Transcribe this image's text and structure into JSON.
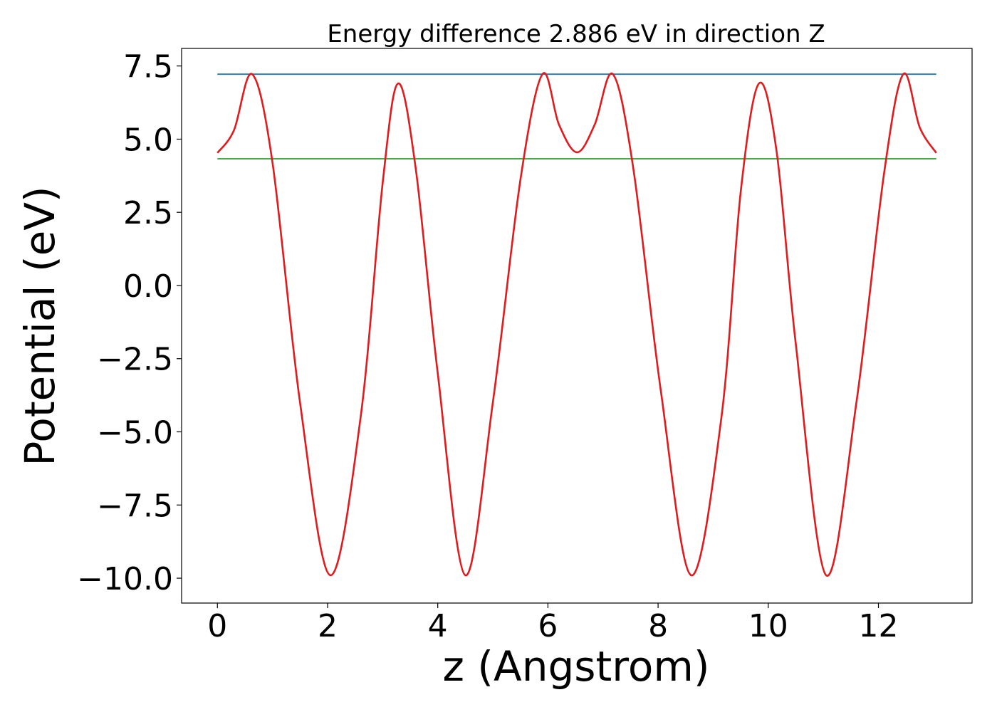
{
  "chart_data": {
    "type": "line",
    "title": "Energy difference 2.886 eV in direction Z",
    "xlabel": "z (Angstrom)",
    "ylabel": "Potential (eV)",
    "xlim": [
      -0.65,
      13.7
    ],
    "ylim": [
      -10.85,
      8.1
    ],
    "xticks": [
      0,
      2,
      4,
      6,
      8,
      10,
      12
    ],
    "xtick_labels": [
      "0",
      "2",
      "4",
      "6",
      "8",
      "10",
      "12"
    ],
    "yticks": [
      7.5,
      5.0,
      2.5,
      0.0,
      -2.5,
      -5.0,
      -7.5,
      -10.0
    ],
    "ytick_labels": [
      "7.5",
      "5.0",
      "2.5",
      "0.0",
      "−2.5",
      "−5.0",
      "−7.5",
      "−10.0"
    ],
    "grid": false,
    "series": [
      {
        "color": "#1f77b4",
        "x": [
          0,
          13.05
        ],
        "y": [
          7.22,
          7.22
        ]
      },
      {
        "color": "#2ca02c",
        "x": [
          0,
          13.05
        ],
        "y": [
          4.33,
          4.33
        ]
      },
      {
        "color": "#e31a1c",
        "x": [
          0,
          0.3,
          0.63,
          1.0,
          1.5,
          2.05,
          2.6,
          3.0,
          3.28,
          3.6,
          4.0,
          4.5,
          5.0,
          5.5,
          5.9,
          6.2,
          6.53,
          6.85,
          7.18,
          7.55,
          8.05,
          8.6,
          9.15,
          9.5,
          9.83,
          10.15,
          10.5,
          11.05,
          11.6,
          12.1,
          12.45,
          12.75,
          13.05
        ],
        "y": [
          4.53,
          5.3,
          7.22,
          4.2,
          -4.0,
          -9.9,
          -4.5,
          3.5,
          6.9,
          4.0,
          -3.0,
          -9.9,
          -4.0,
          3.6,
          7.22,
          5.5,
          4.55,
          5.5,
          7.22,
          4.0,
          -3.6,
          -9.9,
          -4.5,
          3.2,
          6.9,
          4.6,
          -2.0,
          -9.9,
          -4.0,
          3.8,
          7.22,
          5.4,
          4.53
        ]
      }
    ]
  }
}
